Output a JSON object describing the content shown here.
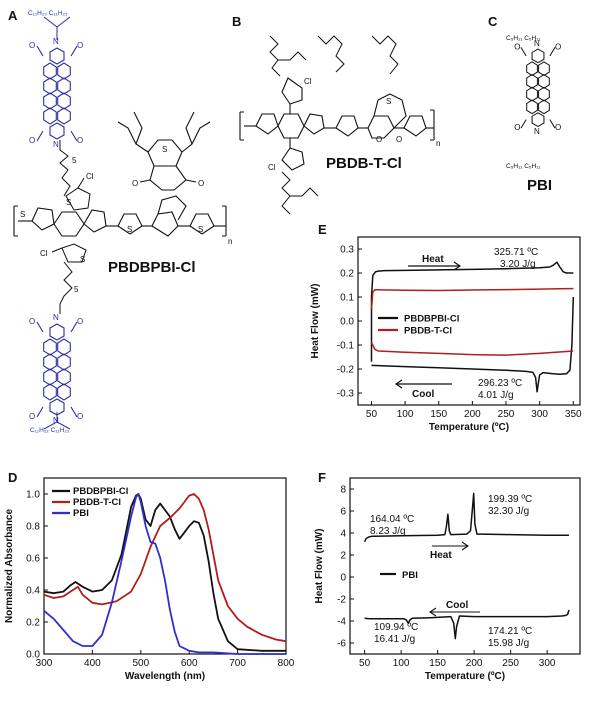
{
  "panels": {
    "A": {
      "letter": "A",
      "name": "PBDBPBI-Cl",
      "chain_top": "C₁₁H₂₃  C₁₁H₂₃",
      "chain_bottom": "C₁₁H₂₂  C₁₁H₂₃",
      "spacer": "5"
    },
    "B": {
      "letter": "B",
      "name": "PBDB-T-Cl"
    },
    "C": {
      "letter": "C",
      "name": "PBI",
      "chain_top": "C₅H₁₁   C₅H₁₁",
      "chain_bottom": "C₅H₁₁   C₅H₁₁"
    },
    "D": {
      "letter": "D"
    },
    "E": {
      "letter": "E"
    },
    "F": {
      "letter": "F"
    }
  },
  "atoms": {
    "O": "O",
    "N": "N",
    "S": "S",
    "Cl": "Cl",
    "n": "n"
  },
  "colors": {
    "blue": "#2b2fa3",
    "black": "#111111",
    "red": "#b01e1e",
    "pbi_blue": "#2f2fd0"
  },
  "chart_data": [
    {
      "id": "E",
      "type": "line",
      "title": "",
      "xlabel": "Temperature (ºC)",
      "ylabel": "Heat Flow (mW)",
      "xlim": [
        30,
        360
      ],
      "ylim": [
        -0.35,
        0.35
      ],
      "xticks": [
        50,
        100,
        150,
        200,
        250,
        300,
        350
      ],
      "yticks": [
        -0.3,
        -0.2,
        -0.1,
        0.0,
        0.1,
        0.2,
        0.3
      ],
      "ytick_labels": [
        "-0.3",
        "-0.2",
        "-0.1",
        "0.0",
        "0.1",
        "0.2",
        "0.3"
      ],
      "legend": [
        "PBDBPBI-Cl",
        "PBDB-T-Cl"
      ],
      "series": [
        {
          "name": "PBDBPBI-Cl",
          "color": "#111111",
          "x": [
            50,
            50,
            52,
            56,
            60,
            70,
            100,
            150,
            200,
            250,
            300,
            315,
            320,
            325.71,
            330,
            335,
            340,
            350
          ],
          "y": [
            -0.17,
            0.1,
            0.19,
            0.205,
            0.208,
            0.21,
            0.211,
            0.213,
            0.215,
            0.218,
            0.222,
            0.225,
            0.232,
            0.245,
            0.225,
            0.205,
            0.2,
            0.2
          ]
        },
        {
          "name": "PBDBPBI-Cl cool",
          "color": "#111111",
          "x": [
            350,
            348,
            345,
            340,
            330,
            320,
            305,
            300,
            298,
            296.23,
            294,
            290,
            280,
            250,
            200,
            150,
            100,
            60,
            50
          ],
          "y": [
            0.1,
            -0.1,
            -0.205,
            -0.22,
            -0.222,
            -0.22,
            -0.215,
            -0.225,
            -0.26,
            -0.295,
            -0.235,
            -0.214,
            -0.21,
            -0.205,
            -0.2,
            -0.195,
            -0.19,
            -0.186,
            -0.185
          ]
        },
        {
          "name": "PBDB-T-Cl",
          "color": "#b01e1e",
          "x": [
            50,
            52,
            55,
            60,
            100,
            150,
            200,
            250,
            300,
            340,
            350
          ],
          "y": [
            0.05,
            0.12,
            0.13,
            0.13,
            0.128,
            0.127,
            0.129,
            0.131,
            0.133,
            0.135,
            0.135
          ]
        },
        {
          "name": "PBDB-T-Cl cool",
          "color": "#b01e1e",
          "x": [
            350,
            340,
            300,
            250,
            200,
            150,
            100,
            60,
            55,
            50
          ],
          "y": [
            -0.125,
            -0.127,
            -0.135,
            -0.142,
            -0.14,
            -0.135,
            -0.13,
            -0.125,
            -0.118,
            -0.09
          ]
        }
      ],
      "annotations": [
        {
          "text": "Heat",
          "arrow": "right"
        },
        {
          "text": "Cool",
          "arrow": "left"
        },
        {
          "text": "325.71 ºC"
        },
        {
          "text": "3.20 J/g"
        },
        {
          "text": "296.23 ºC"
        },
        {
          "text": "4.01 J/g"
        }
      ]
    },
    {
      "id": "D",
      "type": "line",
      "title": "",
      "xlabel": "Wavelength (nm)",
      "ylabel": "Normalized Absorbance",
      "xlim": [
        300,
        800
      ],
      "ylim": [
        0.0,
        1.1
      ],
      "xticks": [
        300,
        400,
        500,
        600,
        700,
        800
      ],
      "yticks": [
        0.0,
        0.2,
        0.4,
        0.6,
        0.8,
        1.0
      ],
      "ytick_labels": [
        "0.0",
        "0.2",
        "0.4",
        "0.6",
        "0.8",
        "1.0"
      ],
      "legend": [
        "PBDBPBI-Cl",
        "PBDB-T-Cl",
        "PBI"
      ],
      "series": [
        {
          "name": "PBDBPBI-Cl",
          "color": "#111111",
          "x": [
            300,
            320,
            340,
            355,
            365,
            380,
            400,
            420,
            440,
            460,
            470,
            480,
            490,
            495,
            500,
            510,
            520,
            530,
            540,
            550,
            560,
            570,
            580,
            590,
            600,
            610,
            620,
            630,
            640,
            650,
            660,
            680,
            700,
            750,
            800
          ],
          "y": [
            0.39,
            0.38,
            0.39,
            0.43,
            0.45,
            0.42,
            0.39,
            0.4,
            0.46,
            0.62,
            0.77,
            0.92,
            0.99,
            1.0,
            0.97,
            0.84,
            0.8,
            0.9,
            0.94,
            0.9,
            0.86,
            0.78,
            0.72,
            0.76,
            0.8,
            0.83,
            0.82,
            0.74,
            0.58,
            0.38,
            0.22,
            0.08,
            0.03,
            0.02,
            0.02
          ]
        },
        {
          "name": "PBDB-T-Cl",
          "color": "#b01e1e",
          "x": [
            300,
            320,
            340,
            360,
            370,
            380,
            400,
            420,
            450,
            480,
            500,
            520,
            540,
            560,
            580,
            590,
            600,
            610,
            620,
            630,
            640,
            650,
            660,
            680,
            700,
            720,
            750,
            780,
            800
          ],
          "y": [
            0.37,
            0.35,
            0.36,
            0.4,
            0.42,
            0.37,
            0.32,
            0.31,
            0.33,
            0.39,
            0.5,
            0.67,
            0.8,
            0.85,
            0.91,
            0.95,
            0.99,
            1.0,
            0.97,
            0.9,
            0.78,
            0.62,
            0.46,
            0.3,
            0.22,
            0.17,
            0.12,
            0.09,
            0.08
          ]
        },
        {
          "name": "PBI",
          "color": "#2f2fd0",
          "x": [
            300,
            320,
            340,
            360,
            380,
            400,
            420,
            440,
            460,
            470,
            480,
            490,
            495,
            500,
            510,
            520,
            530,
            540,
            550,
            560,
            570,
            580,
            600,
            620,
            650,
            700,
            800
          ],
          "y": [
            0.27,
            0.22,
            0.15,
            0.08,
            0.05,
            0.05,
            0.12,
            0.32,
            0.58,
            0.72,
            0.86,
            0.98,
            1.0,
            0.95,
            0.8,
            0.7,
            0.69,
            0.6,
            0.46,
            0.28,
            0.14,
            0.05,
            0.02,
            0.01,
            0.01,
            0.0,
            0.0
          ]
        }
      ]
    },
    {
      "id": "F",
      "type": "line",
      "title": "",
      "xlabel": "Temperature (ºC)",
      "ylabel": "Heat Flow (mW)",
      "xlim": [
        30,
        345
      ],
      "ylim": [
        -7,
        9
      ],
      "xticks": [
        50,
        100,
        150,
        200,
        250,
        300
      ],
      "yticks": [
        -6,
        -4,
        -2,
        0,
        2,
        4,
        6,
        8
      ],
      "ytick_labels": [
        "-6",
        "-4",
        "-2",
        "0",
        "2",
        "4",
        "6",
        "8"
      ],
      "legend": [
        "PBI"
      ],
      "series": [
        {
          "name": "PBI heat",
          "color": "#111111",
          "x": [
            50,
            52,
            56,
            60,
            100,
            150,
            160,
            162,
            164.04,
            166,
            168,
            190,
            195,
            198,
            199.39,
            201,
            204,
            210,
            250,
            300,
            330
          ],
          "y": [
            3.2,
            3.5,
            3.65,
            3.7,
            3.75,
            3.8,
            3.85,
            4.6,
            5.7,
            4.2,
            3.85,
            3.9,
            4.2,
            6.5,
            7.6,
            4.8,
            3.9,
            3.9,
            3.85,
            3.8,
            3.8
          ]
        },
        {
          "name": "PBI cool",
          "color": "#111111",
          "x": [
            330,
            328,
            325,
            320,
            300,
            250,
            200,
            180,
            176,
            174.21,
            172,
            168,
            140,
            115,
            112,
            109.94,
            107,
            104,
            80,
            60,
            55,
            50
          ],
          "y": [
            -3.0,
            -3.4,
            -3.5,
            -3.55,
            -3.6,
            -3.6,
            -3.6,
            -3.55,
            -4.5,
            -5.6,
            -4.2,
            -3.6,
            -3.7,
            -3.75,
            -3.9,
            -4.2,
            -3.9,
            -3.8,
            -3.8,
            -3.8,
            -3.78,
            -3.75
          ]
        }
      ],
      "annotations": [
        {
          "text": "Heat",
          "arrow": "right"
        },
        {
          "text": "Cool",
          "arrow": "left"
        },
        {
          "text": "164.04 ºC"
        },
        {
          "text": "8.23 J/g"
        },
        {
          "text": "199.39 ºC"
        },
        {
          "text": "32.30 J/g"
        },
        {
          "text": "109.94 ºC"
        },
        {
          "text": "16.41 J/g"
        },
        {
          "text": "174.21 ºC"
        },
        {
          "text": "15.98 J/g"
        }
      ]
    }
  ]
}
